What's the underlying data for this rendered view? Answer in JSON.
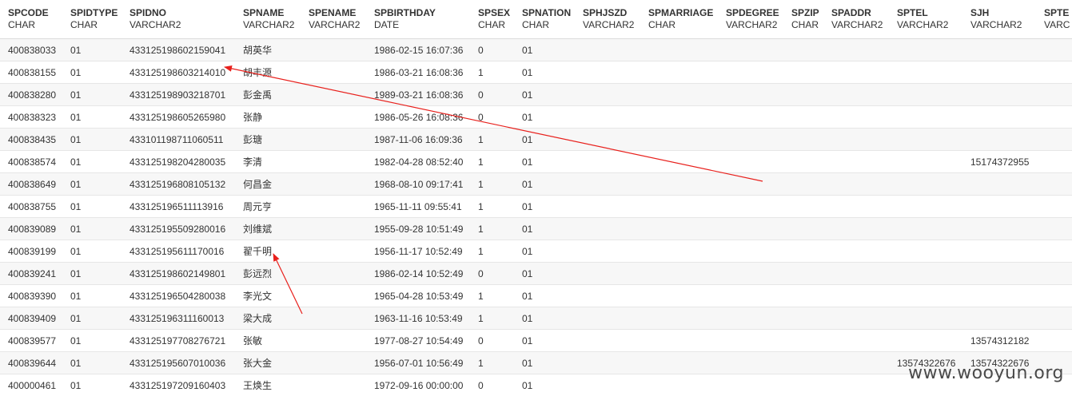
{
  "table": {
    "columns": [
      {
        "name": "SPCODE",
        "type": "CHAR"
      },
      {
        "name": "SPIDTYPE",
        "type": "CHAR"
      },
      {
        "name": "SPIDNO",
        "type": "VARCHAR2"
      },
      {
        "name": "SPNAME",
        "type": "VARCHAR2"
      },
      {
        "name": "SPENAME",
        "type": "VARCHAR2"
      },
      {
        "name": "SPBIRTHDAY",
        "type": "DATE"
      },
      {
        "name": "SPSEX",
        "type": "CHAR"
      },
      {
        "name": "SPNATION",
        "type": "CHAR"
      },
      {
        "name": "SPHJSZD",
        "type": "VARCHAR2"
      },
      {
        "name": "SPMARRIAGE",
        "type": "CHAR"
      },
      {
        "name": "SPDEGREE",
        "type": "VARCHAR2"
      },
      {
        "name": "SPZIP",
        "type": "CHAR"
      },
      {
        "name": "SPADDR",
        "type": "VARCHAR2"
      },
      {
        "name": "SPTEL",
        "type": "VARCHAR2"
      },
      {
        "name": "SJH",
        "type": "VARCHAR2"
      },
      {
        "name": "SPTE",
        "type": "VARC"
      }
    ],
    "rows": [
      [
        "400838033",
        "01",
        "433125198602159041",
        "胡英华",
        "",
        "1986-02-15 16:07:36",
        "0",
        "01",
        "",
        "",
        "",
        "",
        "",
        "",
        "",
        ""
      ],
      [
        "400838155",
        "01",
        "433125198603214010",
        "胡丰源",
        "",
        "1986-03-21 16:08:36",
        "1",
        "01",
        "",
        "",
        "",
        "",
        "",
        "",
        "",
        ""
      ],
      [
        "400838280",
        "01",
        "433125198903218701",
        "彭金禹",
        "",
        "1989-03-21 16:08:36",
        "0",
        "01",
        "",
        "",
        "",
        "",
        "",
        "",
        "",
        ""
      ],
      [
        "400838323",
        "01",
        "433125198605265980",
        "张静",
        "",
        "1986-05-26 16:08:36",
        "0",
        "01",
        "",
        "",
        "",
        "",
        "",
        "",
        "",
        ""
      ],
      [
        "400838435",
        "01",
        "433101198711060511",
        "彭瑭",
        "",
        "1987-11-06 16:09:36",
        "1",
        "01",
        "",
        "",
        "",
        "",
        "",
        "",
        "",
        ""
      ],
      [
        "400838574",
        "01",
        "433125198204280035",
        "李清",
        "",
        "1982-04-28 08:52:40",
        "1",
        "01",
        "",
        "",
        "",
        "",
        "",
        "",
        "15174372955",
        ""
      ],
      [
        "400838649",
        "01",
        "433125196808105132",
        "何昌金",
        "",
        "1968-08-10 09:17:41",
        "1",
        "01",
        "",
        "",
        "",
        "",
        "",
        "",
        "",
        ""
      ],
      [
        "400838755",
        "01",
        "433125196511113916",
        "周元亨",
        "",
        "1965-11-11 09:55:41",
        "1",
        "01",
        "",
        "",
        "",
        "",
        "",
        "",
        "",
        ""
      ],
      [
        "400839089",
        "01",
        "433125195509280016",
        "刘维斌",
        "",
        "1955-09-28 10:51:49",
        "1",
        "01",
        "",
        "",
        "",
        "",
        "",
        "",
        "",
        ""
      ],
      [
        "400839199",
        "01",
        "433125195611170016",
        "翟千明",
        "",
        "1956-11-17 10:52:49",
        "1",
        "01",
        "",
        "",
        "",
        "",
        "",
        "",
        "",
        ""
      ],
      [
        "400839241",
        "01",
        "433125198602149801",
        "彭远烈",
        "",
        "1986-02-14 10:52:49",
        "0",
        "01",
        "",
        "",
        "",
        "",
        "",
        "",
        "",
        ""
      ],
      [
        "400839390",
        "01",
        "433125196504280038",
        "李光文",
        "",
        "1965-04-28 10:53:49",
        "1",
        "01",
        "",
        "",
        "",
        "",
        "",
        "",
        "",
        ""
      ],
      [
        "400839409",
        "01",
        "433125196311160013",
        "梁大成",
        "",
        "1963-11-16 10:53:49",
        "1",
        "01",
        "",
        "",
        "",
        "",
        "",
        "",
        "",
        ""
      ],
      [
        "400839577",
        "01",
        "433125197708276721",
        "张敏",
        "",
        "1977-08-27 10:54:49",
        "0",
        "01",
        "",
        "",
        "",
        "",
        "",
        "",
        "13574312182",
        ""
      ],
      [
        "400839644",
        "01",
        "433125195607010036",
        "张大金",
        "",
        "1956-07-01 10:56:49",
        "1",
        "01",
        "",
        "",
        "",
        "",
        "",
        "13574322676",
        "13574322676",
        ""
      ],
      [
        "400000461",
        "01",
        "433125197209160403",
        "王焕生",
        "",
        "1972-09-16 00:00:00",
        "0",
        "01",
        "",
        "",
        "",
        "",
        "",
        "",
        "",
        ""
      ]
    ]
  },
  "annotation_color": "#e8201c",
  "watermark": "www.wooyun.org"
}
